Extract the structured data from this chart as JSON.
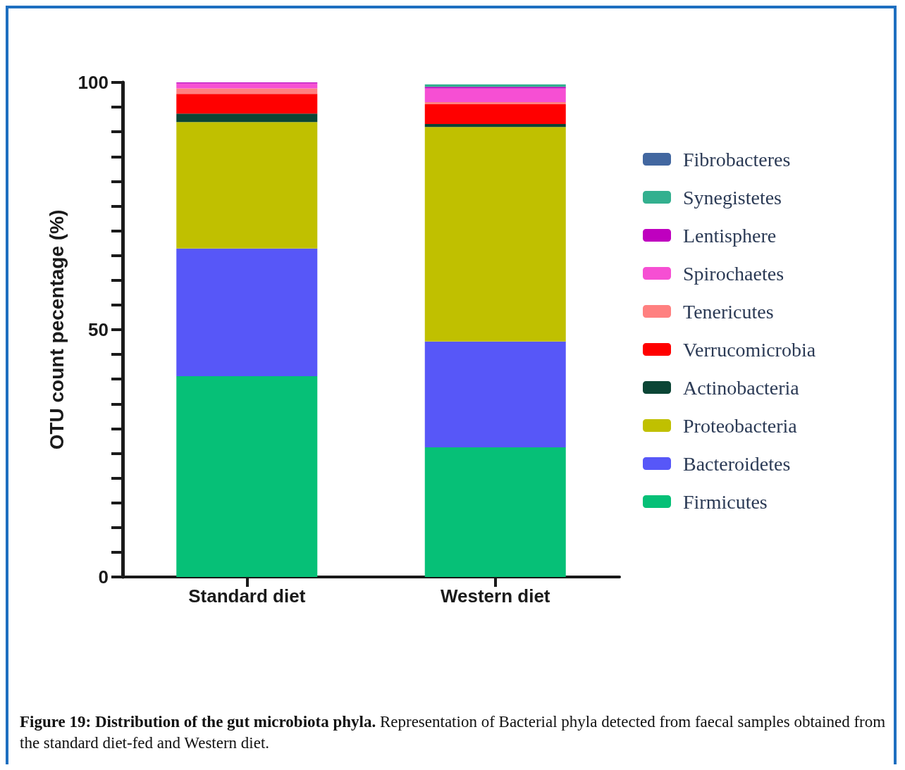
{
  "chart_data": {
    "type": "bar",
    "stacked": true,
    "title": "Figure 19: Distribution of the gut microbiota phyla.",
    "subtitle": "Representation of Bacterial phyla detected from faecal samples obtained from the standard diet-fed and Western diet.",
    "ylabel": "OTU count pecentage (%)",
    "categories": [
      "Standard diet",
      "Western diet"
    ],
    "series": [
      {
        "name": "Firmicutes",
        "color": "#06c077",
        "values": [
          40.6,
          26.2
        ]
      },
      {
        "name": "Bacteroidetes",
        "color": "#5757f8",
        "values": [
          25.8,
          21.4
        ]
      },
      {
        "name": "Proteobacteria",
        "color": "#c0c000",
        "values": [
          25.6,
          43.4
        ]
      },
      {
        "name": "Actinobacteria",
        "color": "#0b4535",
        "values": [
          1.7,
          0.6
        ]
      },
      {
        "name": "Verrucomicrobia",
        "color": "#ff0000",
        "values": [
          4.0,
          4.0
        ]
      },
      {
        "name": "Tenericutes",
        "color": "#ff8080",
        "values": [
          1.1,
          0.4
        ]
      },
      {
        "name": "Spirochaetes",
        "color": "#f64fd3",
        "values": [
          1.0,
          2.8
        ]
      },
      {
        "name": "Lentisphere",
        "color": "#bf00bf",
        "values": [
          0.2,
          0.3
        ]
      },
      {
        "name": "Synegistetes",
        "color": "#33b08f",
        "values": [
          0,
          0.5
        ]
      },
      {
        "name": "Fibrobacteres",
        "color": "#4267a0",
        "values": [
          0,
          0
        ]
      }
    ],
    "ylim": [
      0,
      100
    ],
    "yticks": [
      0,
      {
        "value": 5,
        "label": null
      },
      {
        "value": 10,
        "label": null
      },
      {
        "value": 15,
        "label": null
      },
      {
        "value": 20,
        "label": null
      },
      {
        "value": 25,
        "label": null
      },
      {
        "value": 30,
        "label": null
      },
      {
        "value": 35,
        "label": null
      },
      {
        "value": 40,
        "label": null
      },
      {
        "value": 45,
        "label": null
      },
      50,
      {
        "value": 55,
        "label": null
      },
      {
        "value": 60,
        "label": null
      },
      {
        "value": 65,
        "label": null
      },
      {
        "value": 70,
        "label": null
      },
      {
        "value": 75,
        "label": null
      },
      {
        "value": 80,
        "label": null
      },
      {
        "value": 85,
        "label": null
      },
      {
        "value": 90,
        "label": null
      },
      {
        "value": 95,
        "label": null
      },
      100
    ],
    "grid": false,
    "legend": "right"
  }
}
